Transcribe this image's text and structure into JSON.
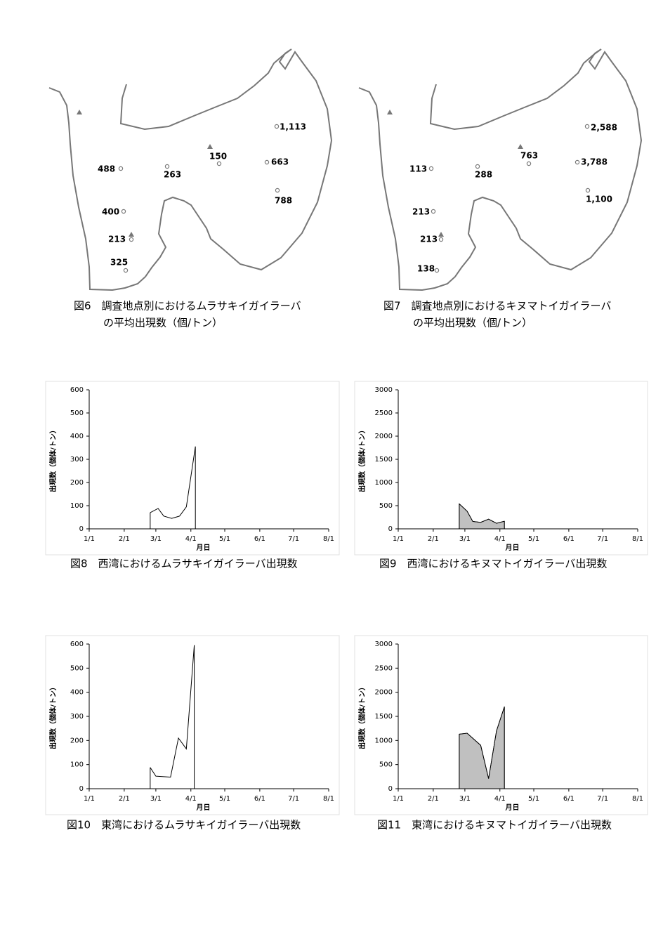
{
  "figures": [
    {
      "caption": [
        "図6　調査地点別におけるムラサキイガイラーバ",
        "の平均出現数（個/トン）"
      ],
      "stations": [
        "1,113",
        "150",
        "663",
        "488",
        "263",
        "788",
        "400",
        "213",
        "325"
      ]
    },
    {
      "caption": [
        "図7　調査地点別におけるキヌマトイガイラーバ",
        "の平均出現数（個/トン）"
      ],
      "stations": [
        "2,588",
        "763",
        "3,788",
        "113",
        "288",
        "1,100",
        "213",
        "213",
        "138"
      ]
    }
  ],
  "chart_data": [
    {
      "type": "line",
      "caption": "図8　西湾におけるムラサキイガイラーバ出現数",
      "xlabel": "月日",
      "ylabel": "出現数（個体/トン）",
      "x": [
        54,
        61,
        66,
        73,
        80,
        86,
        94
      ],
      "values": [
        70,
        88,
        55,
        45,
        55,
        95,
        355
      ],
      "color": "#000000",
      "xlim": [
        0,
        212
      ],
      "xticks": [
        {
          "value": 0,
          "label": "1/1"
        },
        {
          "value": 31,
          "label": "2/1"
        },
        {
          "value": 59,
          "label": "3/1"
        },
        {
          "value": 90,
          "label": "4/1"
        },
        {
          "value": 120,
          "label": "5/1"
        },
        {
          "value": 151,
          "label": "6/1"
        },
        {
          "value": 181,
          "label": "7/1"
        },
        {
          "value": 212,
          "label": "8/1"
        }
      ],
      "ylim": [
        0,
        600
      ],
      "yticks": [
        0,
        100,
        200,
        300,
        400,
        500,
        600
      ]
    },
    {
      "type": "area",
      "caption": "図9　西湾におけるキヌマトイガイラーバ出現数",
      "xlabel": "月日",
      "ylabel": "出現数（個体/トン）",
      "x": [
        54,
        61,
        66,
        73,
        80,
        87,
        94
      ],
      "values": [
        540,
        380,
        160,
        140,
        210,
        120,
        165
      ],
      "color": "#c0c0c0",
      "xlim": [
        0,
        212
      ],
      "xticks": [
        {
          "value": 0,
          "label": "1/1"
        },
        {
          "value": 31,
          "label": "2/1"
        },
        {
          "value": 59,
          "label": "3/1"
        },
        {
          "value": 90,
          "label": "4/1"
        },
        {
          "value": 120,
          "label": "5/1"
        },
        {
          "value": 151,
          "label": "6/1"
        },
        {
          "value": 181,
          "label": "7/1"
        },
        {
          "value": 212,
          "label": "8/1"
        }
      ],
      "ylim": [
        0,
        3000
      ],
      "yticks": [
        0,
        500,
        1000,
        1500,
        2000,
        2500,
        3000
      ]
    },
    {
      "type": "line",
      "caption": "図10　東湾におけるムラサキイガイラーバ出現数",
      "xlabel": "月日",
      "ylabel": "出現数（個体/トン）",
      "x": [
        54,
        59,
        66,
        72,
        79,
        86,
        93
      ],
      "values": [
        88,
        52,
        50,
        48,
        210,
        165,
        595
      ],
      "color": "#000000",
      "xlim": [
        0,
        212
      ],
      "xticks": [
        {
          "value": 0,
          "label": "1/1"
        },
        {
          "value": 31,
          "label": "2/1"
        },
        {
          "value": 59,
          "label": "3/1"
        },
        {
          "value": 90,
          "label": "4/1"
        },
        {
          "value": 120,
          "label": "5/1"
        },
        {
          "value": 151,
          "label": "6/1"
        },
        {
          "value": 181,
          "label": "7/1"
        },
        {
          "value": 212,
          "label": "8/1"
        }
      ],
      "ylim": [
        0,
        600
      ],
      "yticks": [
        0,
        100,
        200,
        300,
        400,
        500,
        600
      ]
    },
    {
      "type": "area",
      "caption": "図11　東湾におけるキヌマトイガイラーバ出現数",
      "xlabel": "月日",
      "ylabel": "出現数（個体/トン）",
      "x": [
        54,
        61,
        73,
        80,
        87,
        94
      ],
      "values": [
        1130,
        1150,
        900,
        210,
        1200,
        1700
      ],
      "color": "#c0c0c0",
      "xlim": [
        0,
        212
      ],
      "xticks": [
        {
          "value": 0,
          "label": "1/1"
        },
        {
          "value": 31,
          "label": "2/1"
        },
        {
          "value": 59,
          "label": "3/1"
        },
        {
          "value": 90,
          "label": "4/1"
        },
        {
          "value": 120,
          "label": "5/1"
        },
        {
          "value": 151,
          "label": "6/1"
        },
        {
          "value": 181,
          "label": "7/1"
        },
        {
          "value": 212,
          "label": "8/1"
        }
      ],
      "ylim": [
        0,
        3000
      ],
      "yticks": [
        0,
        500,
        1000,
        1500,
        2000,
        2500,
        3000
      ]
    }
  ]
}
